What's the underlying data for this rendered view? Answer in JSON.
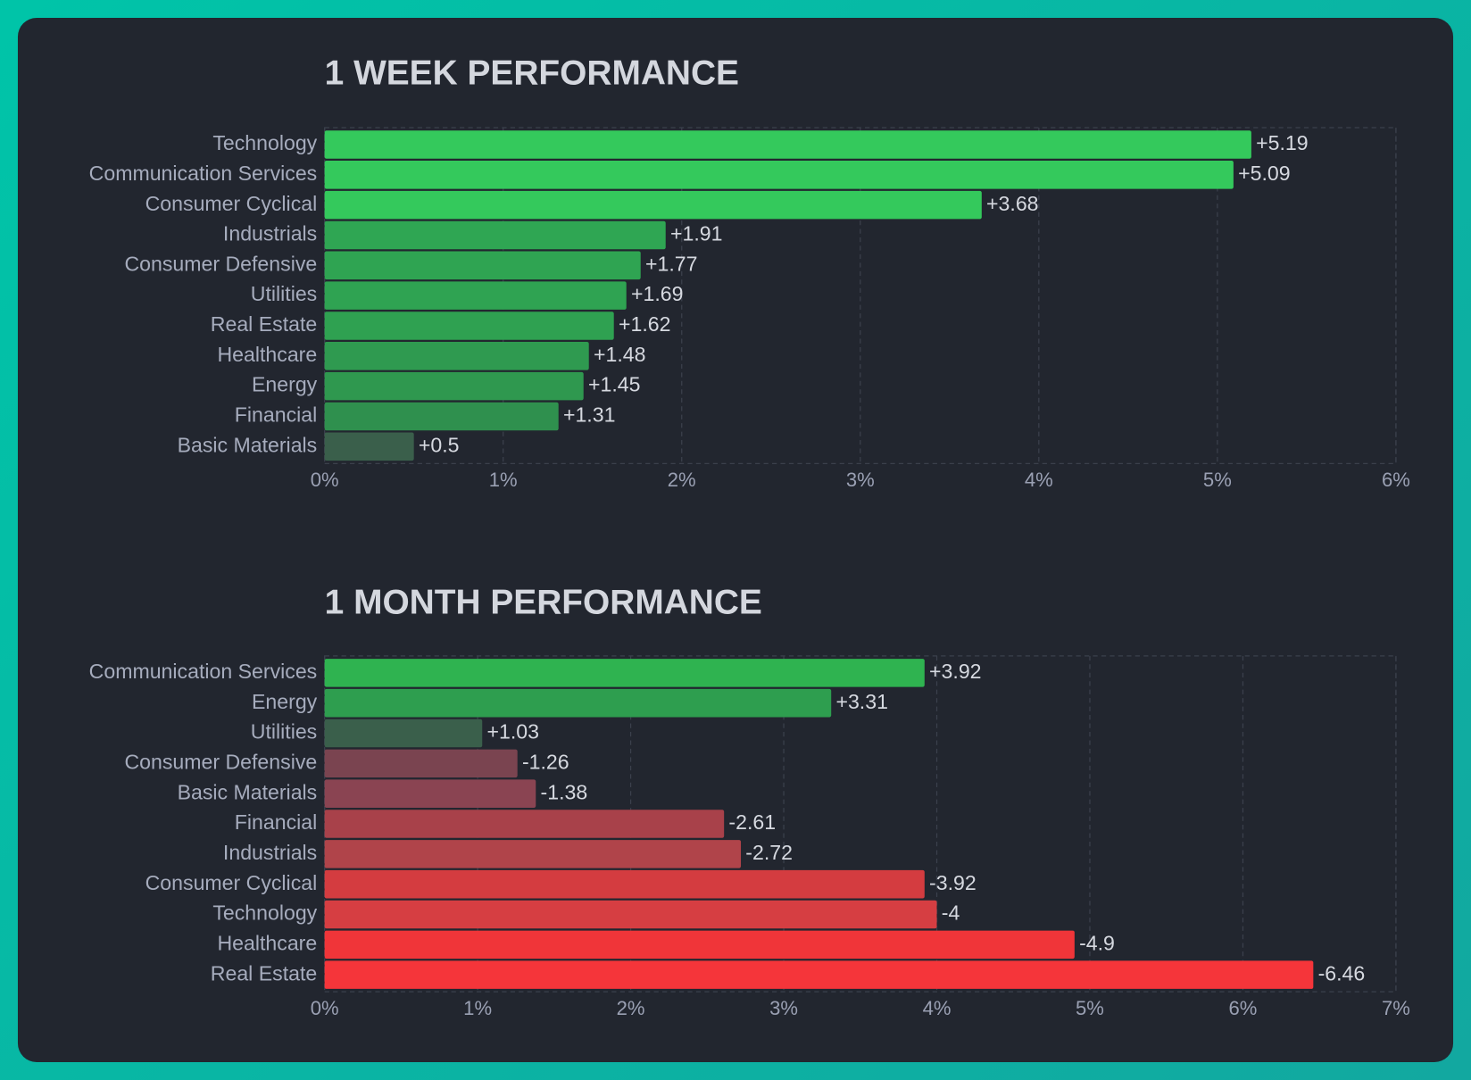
{
  "chart_data": [
    {
      "type": "bar",
      "title": "1 WEEK PERFORMANCE",
      "categories": [
        "Technology",
        "Communication Services",
        "Consumer Cyclical",
        "Industrials",
        "Consumer Defensive",
        "Utilities",
        "Real Estate",
        "Healthcare",
        "Energy",
        "Financial",
        "Basic Materials"
      ],
      "values": [
        5.19,
        5.09,
        3.68,
        1.91,
        1.77,
        1.69,
        1.62,
        1.48,
        1.45,
        1.31,
        0.5
      ],
      "value_labels": [
        "+5.19",
        "+5.09",
        "+3.68",
        "+1.91",
        "+1.77",
        "+1.69",
        "+1.62",
        "+1.48",
        "+1.45",
        "+1.31",
        "+0.5"
      ],
      "colors": [
        "#34c95c",
        "#34c95c",
        "#34c95c",
        "#2fa653",
        "#2fa452",
        "#2fa352",
        "#2fa151",
        "#2f9a50",
        "#2f984f",
        "#2f904e",
        "#3a5f4b"
      ],
      "xlim": [
        0,
        6
      ],
      "xticks": [
        {
          "value": 0,
          "label": "0%"
        },
        {
          "value": 1,
          "label": "1%"
        },
        {
          "value": 2,
          "label": "2%"
        },
        {
          "value": 3,
          "label": "3%"
        },
        {
          "value": 4,
          "label": "4%"
        },
        {
          "value": 5,
          "label": "5%"
        },
        {
          "value": 6,
          "label": "6%"
        }
      ],
      "grid": true
    },
    {
      "type": "bar",
      "title": "1 MONTH PERFORMANCE",
      "categories": [
        "Communication Services",
        "Energy",
        "Utilities",
        "Consumer Defensive",
        "Basic Materials",
        "Financial",
        "Industrials",
        "Consumer Cyclical",
        "Technology",
        "Healthcare",
        "Real Estate"
      ],
      "values": [
        3.92,
        3.31,
        1.03,
        -1.26,
        -1.38,
        -2.61,
        -2.72,
        -3.92,
        -4,
        -4.9,
        -6.46
      ],
      "value_labels": [
        "+3.92",
        "+3.31",
        "+1.03",
        "-1.26",
        "-1.38",
        "-2.61",
        "-2.72",
        "-3.92",
        "-4",
        "-4.9",
        "-6.46"
      ],
      "colors": [
        "#2fb350",
        "#2e9e4f",
        "#3a5f4b",
        "#7a4450",
        "#8a4452",
        "#a8414a",
        "#b0444a",
        "#d43c40",
        "#d63e42",
        "#f03539",
        "#f5353a"
      ],
      "xlim": [
        0,
        7
      ],
      "xticks": [
        {
          "value": 0,
          "label": "0%"
        },
        {
          "value": 1,
          "label": "1%"
        },
        {
          "value": 2,
          "label": "2%"
        },
        {
          "value": 3,
          "label": "3%"
        },
        {
          "value": 4,
          "label": "4%"
        },
        {
          "value": 5,
          "label": "5%"
        },
        {
          "value": 6,
          "label": "6%"
        },
        {
          "value": 7,
          "label": "7%"
        }
      ],
      "grid": true
    }
  ]
}
